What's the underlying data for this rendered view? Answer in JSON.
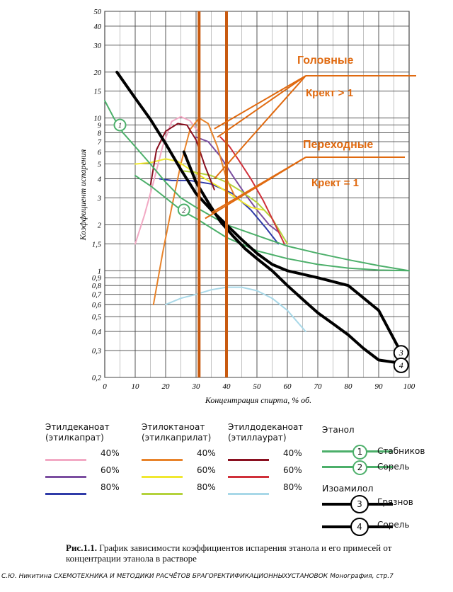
{
  "chart_data": {
    "type": "line",
    "yscale": "log",
    "xlim": [
      0,
      100
    ],
    "ylim": [
      0.2,
      50
    ],
    "xlabel": "Концентрация спирта, % об.",
    "ylabel": "Коэффициент испарения",
    "x_ticks": [
      0,
      10,
      20,
      30,
      40,
      50,
      60,
      70,
      80,
      90,
      100
    ],
    "y_ticks": [
      0.2,
      0.3,
      0.4,
      0.5,
      0.6,
      0.7,
      0.8,
      0.9,
      1,
      1.5,
      2,
      3,
      4,
      5,
      6,
      7,
      8,
      9,
      10,
      15,
      20,
      30,
      40,
      50
    ],
    "y_tick_labels": [
      "0,2",
      "0,3",
      "0,4",
      "0,5",
      "0,6",
      "0,7",
      "0,8",
      "0,9",
      "1",
      "1,5",
      "2",
      "3",
      "4",
      "5",
      "6",
      "7",
      "8",
      "9",
      "10",
      "15",
      "20",
      "30",
      "40",
      "50"
    ],
    "grid": true,
    "series": [
      {
        "group": "Этилдеканоат (этилкапрат)",
        "name": "40%",
        "color": "#f2a9c4",
        "width": 2,
        "x": [
          10,
          13,
          16,
          19,
          22,
          25,
          28,
          31
        ],
        "y": [
          1.5,
          2.3,
          3.8,
          6.5,
          9.5,
          10.2,
          9.6,
          8.0
        ]
      },
      {
        "group": "Этилдеканоат (этилкапрат)",
        "name": "60%",
        "color": "#7b4ea0",
        "width": 2,
        "x": [
          30,
          34,
          38,
          42,
          46,
          50,
          54,
          57
        ],
        "y": [
          7.5,
          7.0,
          5.6,
          4.2,
          3.2,
          2.5,
          2.0,
          1.8
        ]
      },
      {
        "group": "Этилдеканоат (этилкапрат)",
        "name": "80%",
        "color": "#2f3ba8",
        "width": 2,
        "x": [
          18,
          22,
          28,
          35,
          42,
          48,
          53,
          57
        ],
        "y": [
          4.0,
          3.9,
          3.9,
          3.7,
          3.2,
          2.5,
          1.9,
          1.5
        ]
      },
      {
        "group": "Этилоктаноат (этилкаприлат)",
        "name": "40%",
        "color": "#e8832a",
        "width": 2,
        "x": [
          16,
          19,
          22,
          25,
          28,
          31,
          34,
          37,
          40,
          43
        ],
        "y": [
          0.6,
          1.3,
          2.6,
          5.0,
          8.4,
          10.0,
          9.2,
          6.5,
          4.0,
          3.0
        ]
      },
      {
        "group": "Этилоктаноат (этилкаприлат)",
        "name": "60%",
        "color": "#f0e830",
        "width": 2,
        "x": [
          10,
          15,
          20,
          24,
          28,
          33,
          38,
          43,
          48,
          52
        ],
        "y": [
          5.0,
          5.1,
          5.4,
          5.2,
          4.6,
          4.0,
          3.5,
          3.0,
          2.6,
          2.5
        ]
      },
      {
        "group": "Этилоктаноат (этилкаприлат)",
        "name": "80%",
        "color": "#b4d23c",
        "width": 2,
        "x": [
          26,
          30,
          35,
          40,
          45,
          50,
          55,
          60
        ],
        "y": [
          4.5,
          4.4,
          4.2,
          3.8,
          3.3,
          2.8,
          2.2,
          1.5
        ]
      },
      {
        "group": "Этилдодеканоат (этиллаурат)",
        "name": "40%",
        "color": "#8a1020",
        "width": 2,
        "x": [
          15,
          17,
          20,
          24,
          27,
          30,
          33,
          36
        ],
        "y": [
          3.6,
          6.2,
          8.2,
          9.2,
          9.0,
          7.2,
          4.8,
          3.4
        ]
      },
      {
        "group": "Этилдодеканоат (этиллаурат)",
        "name": "60%",
        "color": "#d0303a",
        "width": 2,
        "x": [
          38,
          41,
          44,
          48,
          52,
          56,
          59
        ],
        "y": [
          7.5,
          6.5,
          5.3,
          4.0,
          2.9,
          2.0,
          1.5
        ]
      },
      {
        "group": "Этилдодеканоат (этиллаурат)",
        "name": "80%",
        "color": "#a8d8e8",
        "width": 2,
        "x": [
          20,
          25,
          30,
          35,
          40,
          45,
          50,
          55,
          60,
          66
        ],
        "y": [
          0.6,
          0.66,
          0.7,
          0.75,
          0.78,
          0.78,
          0.74,
          0.66,
          0.55,
          0.4
        ]
      },
      {
        "group": "Этанол",
        "name": "Стабников",
        "color": "#4caf6a",
        "width": 2,
        "x": [
          0,
          3,
          6,
          10,
          15,
          20,
          25,
          30,
          40,
          50,
          60,
          70,
          80,
          90,
          100
        ],
        "y": [
          13,
          10,
          8,
          6.5,
          5.0,
          3.8,
          3.0,
          2.6,
          2.0,
          1.7,
          1.45,
          1.3,
          1.18,
          1.08,
          1.0
        ]
      },
      {
        "group": "Этанол",
        "name": "Сорель",
        "color": "#4caf6a",
        "width": 2,
        "x": [
          10,
          15,
          20,
          25,
          30,
          40,
          50,
          60,
          70,
          80,
          90,
          100
        ],
        "y": [
          4.2,
          3.6,
          3.0,
          2.5,
          2.2,
          1.65,
          1.35,
          1.2,
          1.1,
          1.04,
          1.01,
          1.0
        ]
      },
      {
        "group": "Изоамилол",
        "name": "Грязнов",
        "color": "#000000",
        "width": 4,
        "x": [
          4,
          10,
          15,
          20,
          25,
          30,
          35,
          40,
          45,
          50,
          55,
          60,
          70,
          80,
          90,
          97
        ],
        "y": [
          20,
          13.5,
          9.8,
          6.8,
          4.6,
          3.2,
          2.5,
          2.0,
          1.6,
          1.3,
          1.1,
          1.0,
          0.9,
          0.8,
          0.55,
          0.3
        ]
      },
      {
        "group": "Изоамилол",
        "name": "Сорель",
        "color": "#000000",
        "width": 4,
        "x": [
          26,
          30,
          34,
          38,
          42,
          46,
          50,
          55,
          60,
          65,
          70,
          75,
          80,
          85,
          90,
          96
        ],
        "y": [
          6.0,
          3.8,
          2.8,
          2.1,
          1.7,
          1.4,
          1.2,
          1.0,
          0.8,
          0.65,
          0.53,
          0.45,
          0.38,
          0.31,
          0.26,
          0.25
        ]
      }
    ],
    "markers": [
      {
        "label": "1",
        "x": 5,
        "y": 9.0
      },
      {
        "label": "2",
        "x": 26,
        "y": 2.5
      },
      {
        "label": "3",
        "x": 99,
        "y": 0.29
      },
      {
        "label": "4",
        "x": 99,
        "y": 0.24
      }
    ],
    "vertical_lines": [
      31,
      40
    ],
    "annotations": [
      {
        "text": "Головные",
        "subtext": "Крект > 1",
        "color": "#e06a10",
        "arrow_targets": [
          [
            37,
            7.5
          ],
          [
            36,
            4.0
          ],
          [
            36,
            8.5
          ]
        ]
      },
      {
        "text": "Переходные",
        "subtext": "Крект = 1",
        "color": "#e06a10",
        "arrow_targets": [
          [
            35,
            2.4
          ],
          [
            33,
            2.2
          ]
        ]
      }
    ]
  },
  "legend": {
    "groups": [
      {
        "title": "Этилдеканоат\n(этилкапрат)",
        "items": [
          "40%",
          "60%",
          "80%"
        ],
        "colors": [
          "#f2a9c4",
          "#7b4ea0",
          "#2f3ba8"
        ]
      },
      {
        "title": "Этилоктаноат\n(этилкаприлат)",
        "items": [
          "40%",
          "60%",
          "80%"
        ],
        "colors": [
          "#e8832a",
          "#f0e830",
          "#b4d23c"
        ]
      },
      {
        "title": "Этилдодеканоат\n(этиллаурат)",
        "items": [
          "40%",
          "60%",
          "80%"
        ],
        "colors": [
          "#8a1020",
          "#d0303a",
          "#a8d8e8"
        ]
      }
    ],
    "ethanol_title": "Этанол",
    "ethanol_items": [
      {
        "num": "1",
        "label": "Стабников",
        "color": "#4caf6a"
      },
      {
        "num": "2",
        "label": "Сорель",
        "color": "#4caf6a"
      }
    ],
    "isoamyl_title": "Изоамилол",
    "isoamyl_items": [
      {
        "num": "3",
        "label": "Грязнов",
        "color": "#000000"
      },
      {
        "num": "4",
        "label": "Сорель",
        "color": "#000000"
      }
    ]
  },
  "caption": {
    "label": "Рис.1.1.",
    "text": "График зависимости коэффициентов испарения этанола и его примесей от концентрации этанола в растворе"
  },
  "source": "С.Ю. Никитина СХЕМОТЕХНИКА И МЕТОДИКИ РАСЧЁТОВ БРАГОРЕКТИФИКАЦИОННЫХУСТАНОВОК Монография, стр.7"
}
